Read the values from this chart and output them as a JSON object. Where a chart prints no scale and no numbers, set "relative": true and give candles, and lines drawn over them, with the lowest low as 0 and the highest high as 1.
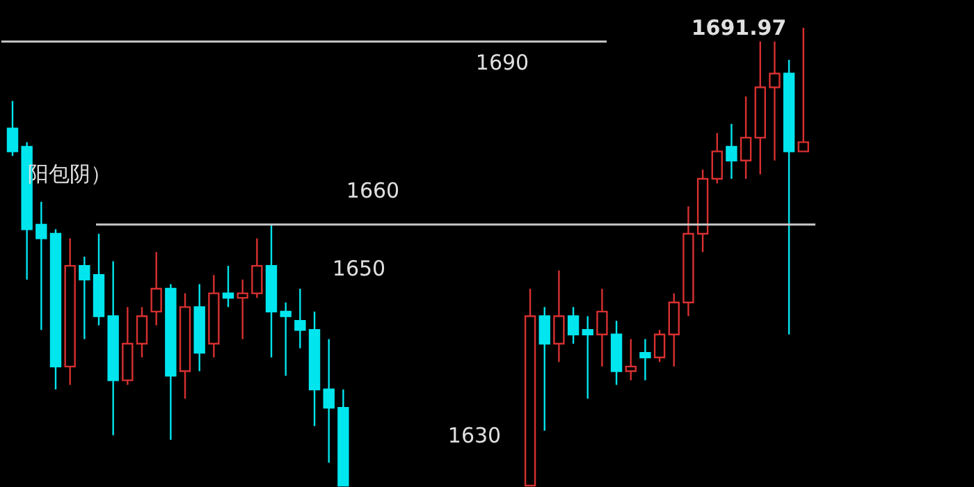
{
  "chart_data": {
    "type": "candlestick",
    "relative": true,
    "categories": [
      null,
      null,
      null,
      null,
      null,
      null,
      null,
      null,
      null,
      null,
      null,
      null,
      null,
      null,
      null,
      null,
      null,
      null,
      null,
      null,
      null,
      null,
      null,
      null,
      null,
      null,
      null,
      null,
      null,
      null,
      null,
      null,
      null,
      null,
      null,
      null,
      null,
      null,
      null,
      null,
      null,
      null,
      null,
      null,
      null,
      null,
      null,
      null,
      null,
      null,
      null,
      null,
      null,
      null,
      null,
      null
    ],
    "ohlc": [
      [
        0.78,
        0.84,
        0.72,
        0.73
      ],
      [
        0.74,
        0.75,
        0.45,
        0.56
      ],
      [
        0.57,
        0.62,
        0.34,
        0.54
      ],
      [
        0.55,
        0.56,
        0.21,
        0.26
      ],
      [
        0.26,
        0.54,
        0.22,
        0.48
      ],
      [
        0.48,
        0.5,
        0.32,
        0.45
      ],
      [
        0.46,
        0.55,
        0.35,
        0.37
      ],
      [
        0.37,
        0.49,
        0.11,
        0.23
      ],
      [
        0.23,
        0.39,
        0.22,
        0.31
      ],
      [
        0.31,
        0.39,
        0.28,
        0.37
      ],
      [
        0.38,
        0.51,
        0.35,
        0.43
      ],
      [
        0.43,
        0.44,
        0.1,
        0.24
      ],
      [
        0.25,
        0.42,
        0.19,
        0.39
      ],
      [
        0.39,
        0.44,
        0.25,
        0.29
      ],
      [
        0.31,
        0.46,
        0.28,
        0.42
      ],
      [
        0.42,
        0.48,
        0.39,
        0.41
      ],
      [
        0.41,
        0.45,
        0.32,
        0.42
      ],
      [
        0.42,
        0.54,
        0.41,
        0.48
      ],
      [
        0.48,
        0.57,
        0.28,
        0.38
      ],
      [
        0.38,
        0.4,
        0.24,
        0.37
      ],
      [
        0.36,
        0.43,
        0.3,
        0.34
      ],
      [
        0.34,
        0.38,
        0.13,
        0.21
      ],
      [
        0.21,
        0.32,
        0.05,
        0.17
      ],
      [
        0.17,
        0.21,
        0,
        0
      ],
      null,
      null,
      null,
      null,
      null,
      null,
      null,
      null,
      null,
      null,
      null,
      null,
      [
        0,
        0.43,
        0,
        0.37
      ],
      [
        0.37,
        0.39,
        0.12,
        0.31
      ],
      [
        0.31,
        0.47,
        0.27,
        0.37
      ],
      [
        0.37,
        0.39,
        0.31,
        0.33
      ],
      [
        0.34,
        0.37,
        0.19,
        0.33
      ],
      [
        0.33,
        0.43,
        0.26,
        0.38
      ],
      [
        0.33,
        0.36,
        0.22,
        0.25
      ],
      [
        0.25,
        0.32,
        0.23,
        0.26
      ],
      [
        0.29,
        0.32,
        0.23,
        0.28
      ],
      [
        0.28,
        0.34,
        0.27,
        0.33
      ],
      [
        0.33,
        0.42,
        0.26,
        0.4
      ],
      [
        0.4,
        0.61,
        0.37,
        0.55
      ],
      [
        0.55,
        0.69,
        0.51,
        0.67
      ],
      [
        0.67,
        0.77,
        0.66,
        0.73
      ],
      [
        0.74,
        0.79,
        0.67,
        0.71
      ],
      [
        0.71,
        0.85,
        0.67,
        0.76
      ],
      [
        0.76,
        0.97,
        0.68,
        0.87
      ],
      [
        0.87,
        0.97,
        0.71,
        0.9
      ],
      [
        0.9,
        0.93,
        0.33,
        0.73
      ],
      [
        0.73,
        1,
        0.73,
        0.75
      ]
    ],
    "colors": [
      "#00e5ee",
      "#00e5ee",
      "#00e5ee",
      "#00e5ee",
      "#d83030",
      "#00e5ee",
      "#00e5ee",
      "#00e5ee",
      "#d83030",
      "#d83030",
      "#d83030",
      "#00e5ee",
      "#d83030",
      "#00e5ee",
      "#d83030",
      "#00e5ee",
      "#d83030",
      "#d83030",
      "#00e5ee",
      "#00e5ee",
      "#00e5ee",
      "#00e5ee",
      "#00e5ee",
      "#00e5ee",
      null,
      null,
      null,
      null,
      null,
      null,
      null,
      null,
      null,
      null,
      null,
      null,
      "#d83030",
      "#00e5ee",
      "#d83030",
      "#00e5ee",
      "#00e5ee",
      "#d83030",
      "#00e5ee",
      "#d83030",
      "#00e5ee",
      "#d83030",
      "#d83030",
      "#d83030",
      "#d83030",
      "#d83030",
      "#00e5ee",
      "#d83030",
      "#d83030",
      "#d83030",
      "#00e5ee",
      "#d83030"
    ],
    "ref_lines": [
      {
        "axis": "y",
        "value": 0.97,
        "color": "#c8c8c8"
      },
      {
        "axis": "y",
        "value": 0.57,
        "color": "#c8c8c8"
      }
    ],
    "annotations": [
      "1691.97",
      "1650",
      "1630",
      "阳包阴）",
      "1690",
      "1660"
    ]
  }
}
